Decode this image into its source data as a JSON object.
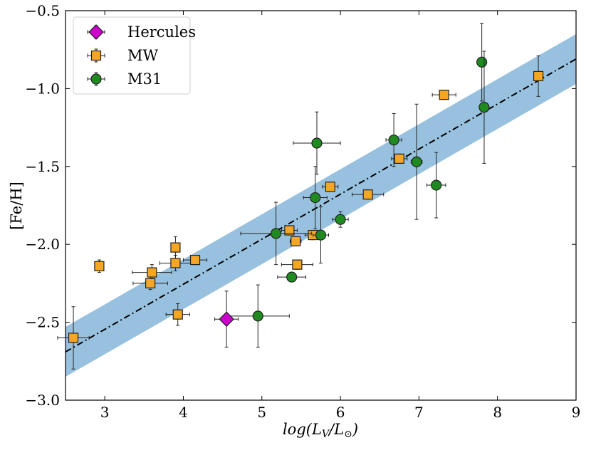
{
  "chart_data": {
    "type": "scatter",
    "title": "",
    "xlabel": "log(L_V/L_⊙)",
    "ylabel": "[Fe/H]",
    "xlim": [
      2.5,
      9
    ],
    "ylim": [
      -3.0,
      -0.5
    ],
    "xticks": [
      3,
      4,
      5,
      6,
      7,
      8,
      9
    ],
    "yticks": [
      -3.0,
      -2.5,
      -2.0,
      -1.5,
      -1.0,
      -0.5
    ],
    "xtick_labels": [
      "3",
      "4",
      "5",
      "6",
      "7",
      "8",
      "9"
    ],
    "ytick_labels": [
      "−3.0",
      "−2.5",
      "−2.0",
      "−1.5",
      "−1.0",
      "−0.5"
    ],
    "legend_position": "top-left",
    "fit_line": {
      "style": "dash-dot",
      "color": "#000000",
      "x": [
        2.5,
        9.0
      ],
      "y": [
        -2.69,
        -0.81
      ],
      "band_halfwidth": 0.16,
      "band_color": "#97c1df"
    },
    "series": [
      {
        "name": "Hercules",
        "marker": "diamond",
        "color": "#cc00cc",
        "points": [
          {
            "x": 4.55,
            "y": -2.48,
            "xerr": 0.15,
            "yerr": 0.18
          }
        ]
      },
      {
        "name": "MW",
        "marker": "square",
        "color": "#f5a623",
        "points": [
          {
            "x": 2.6,
            "y": -2.6,
            "xerr": 0.2,
            "yerr": 0.2
          },
          {
            "x": 2.93,
            "y": -2.14,
            "xerr": 0.05,
            "yerr": 0.04
          },
          {
            "x": 3.6,
            "y": -2.18,
            "xerr": 0.25,
            "yerr": 0.05
          },
          {
            "x": 3.58,
            "y": -2.25,
            "xerr": 0.22,
            "yerr": 0.04
          },
          {
            "x": 3.9,
            "y": -2.02,
            "xerr": 0.05,
            "yerr": 0.07
          },
          {
            "x": 3.9,
            "y": -2.12,
            "xerr": 0.2,
            "yerr": 0.05
          },
          {
            "x": 3.93,
            "y": -2.45,
            "xerr": 0.15,
            "yerr": 0.07
          },
          {
            "x": 4.15,
            "y": -2.1,
            "xerr": 0.15,
            "yerr": 0.03
          },
          {
            "x": 5.35,
            "y": -1.91,
            "xerr": 0.1,
            "yerr": 0.03
          },
          {
            "x": 5.43,
            "y": -1.98,
            "xerr": 0.07,
            "yerr": 0.03
          },
          {
            "x": 5.45,
            "y": -2.13,
            "xerr": 0.2,
            "yerr": 0.03
          },
          {
            "x": 5.65,
            "y": -1.94,
            "xerr": 0.1,
            "yerr": 0.03
          },
          {
            "x": 5.87,
            "y": -1.63,
            "xerr": 0.1,
            "yerr": 0.03
          },
          {
            "x": 6.35,
            "y": -1.68,
            "xerr": 0.2,
            "yerr": 0.03
          },
          {
            "x": 6.75,
            "y": -1.45,
            "xerr": 0.1,
            "yerr": 0.03
          },
          {
            "x": 7.32,
            "y": -1.04,
            "xerr": 0.15,
            "yerr": 0.03
          },
          {
            "x": 8.52,
            "y": -0.92,
            "xerr": 0.05,
            "yerr": 0.13
          }
        ]
      },
      {
        "name": "M31",
        "marker": "circle",
        "color": "#1f8a1f",
        "points": [
          {
            "x": 4.95,
            "y": -2.46,
            "xerr": 0.4,
            "yerr": 0.2
          },
          {
            "x": 5.18,
            "y": -1.93,
            "xerr": 0.45,
            "yerr": 0.2
          },
          {
            "x": 5.38,
            "y": -2.21,
            "xerr": 0.18,
            "yerr": 0.03
          },
          {
            "x": 5.68,
            "y": -1.7,
            "xerr": 0.15,
            "yerr": 0.2
          },
          {
            "x": 5.7,
            "y": -1.35,
            "xerr": 0.3,
            "yerr": 0.2
          },
          {
            "x": 5.75,
            "y": -1.94,
            "xerr": 0.1,
            "yerr": 0.18
          },
          {
            "x": 6.0,
            "y": -1.84,
            "xerr": 0.1,
            "yerr": 0.05
          },
          {
            "x": 6.68,
            "y": -1.33,
            "xerr": 0.1,
            "yerr": 0.17
          },
          {
            "x": 6.97,
            "y": -1.47,
            "xerr": 0.07,
            "yerr": 0.37
          },
          {
            "x": 7.22,
            "y": -1.62,
            "xerr": 0.12,
            "yerr": 0.21
          },
          {
            "x": 7.8,
            "y": -0.83,
            "xerr": 0.05,
            "yerr": 0.25
          },
          {
            "x": 7.83,
            "y": -1.12,
            "xerr": 0.05,
            "yerr": 0.36
          }
        ]
      }
    ]
  }
}
